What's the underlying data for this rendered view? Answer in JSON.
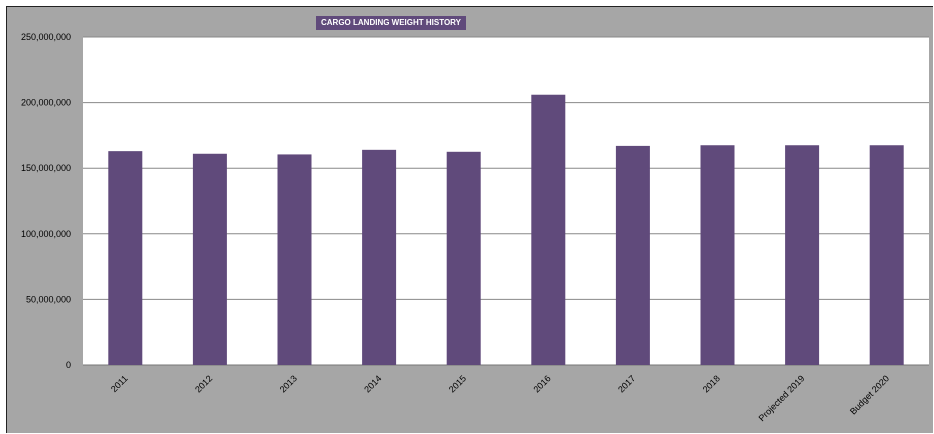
{
  "chart_data": {
    "type": "bar",
    "title": "CARGO LANDING WEIGHT HISTORY",
    "categories": [
      "2011",
      "2012",
      "2013",
      "2014",
      "2015",
      "2016",
      "2017",
      "2018",
      "Projected 2019",
      "Budget 2020"
    ],
    "values": [
      163000000,
      161000000,
      160500000,
      164000000,
      162500000,
      206000000,
      167000000,
      167500000,
      167500000,
      167500000
    ],
    "yticks": [
      "0",
      "50,000,000",
      "100,000,000",
      "150,000,000",
      "200,000,000",
      "250,000,000"
    ],
    "ylim": [
      0,
      250000000
    ],
    "grid": true,
    "legend": "none",
    "colors": {
      "bar": "#604a7b",
      "plot_background": "#ffffff",
      "chart_background": "#a6a6a6",
      "gridline": "#888888"
    }
  }
}
